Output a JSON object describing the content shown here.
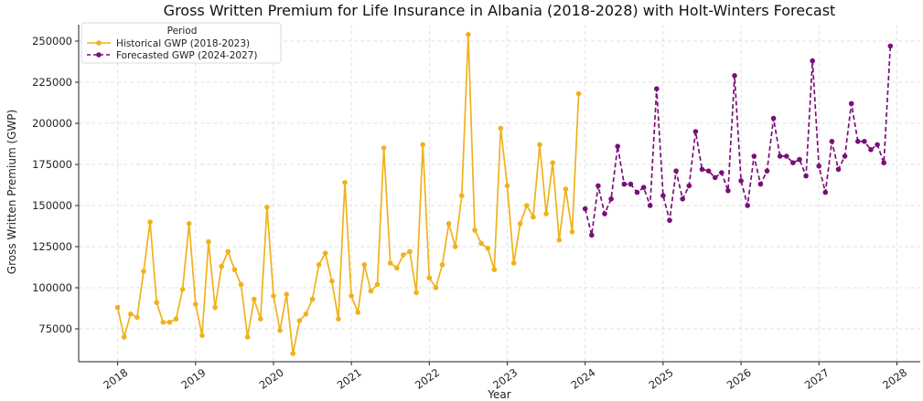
{
  "chart_data": {
    "type": "line",
    "title": "Gross Written Premium for Life Insurance in Albania (2018-2028) with Holt-Winters Forecast",
    "xlabel": "Year",
    "ylabel": "Gross Written Premium (GWP)",
    "xlim": [
      2017.5,
      2028.3
    ],
    "ylim": [
      55000,
      260000
    ],
    "x_ticks": [
      2018,
      2019,
      2020,
      2021,
      2022,
      2023,
      2024,
      2025,
      2026,
      2027,
      2028
    ],
    "x_tick_labels": [
      "2018",
      "2019",
      "2020",
      "2021",
      "2022",
      "2023",
      "2024",
      "2025",
      "2026",
      "2027",
      "2028"
    ],
    "y_ticks": [
      75000,
      100000,
      125000,
      150000,
      175000,
      200000,
      225000,
      250000
    ],
    "y_tick_labels": [
      "75000",
      "100000",
      "125000",
      "150000",
      "175000",
      "200000",
      "225000",
      "250000"
    ],
    "grid": true,
    "legend": {
      "title": "Period",
      "placement": "top-left"
    },
    "series": [
      {
        "name": "Historical GWP (2018-2023)",
        "color": "#f0b21c",
        "style": "solid",
        "start": 2018,
        "step": 0.08333,
        "values": [
          88000,
          70000,
          84000,
          82000,
          110000,
          140000,
          91000,
          79000,
          79000,
          81000,
          99000,
          139000,
          90000,
          71000,
          128000,
          88000,
          113000,
          122000,
          111000,
          102000,
          70000,
          93000,
          81000,
          149000,
          95000,
          74000,
          96000,
          60000,
          80000,
          84000,
          93000,
          114000,
          121000,
          104000,
          81000,
          164000,
          95000,
          85000,
          114000,
          98000,
          102000,
          185000,
          115000,
          112000,
          120000,
          122000,
          97000,
          187000,
          106000,
          100000,
          114000,
          139000,
          125000,
          156000,
          254000,
          135000,
          127000,
          124000,
          111000,
          197000,
          162000,
          115000,
          139000,
          150000,
          143000,
          187000,
          145000,
          176000,
          129000,
          160000,
          134000,
          218000
        ]
      },
      {
        "name": "Forecasted GWP (2024-2027)",
        "color": "#7a0f7a",
        "style": "dashed",
        "start": 2024,
        "step": 0.08333,
        "values": [
          148000,
          132000,
          162000,
          145000,
          154000,
          186000,
          163000,
          163000,
          158000,
          161000,
          150000,
          221000,
          156000,
          141000,
          171000,
          154000,
          162000,
          195000,
          172000,
          171000,
          167000,
          170000,
          159000,
          229000,
          165000,
          150000,
          180000,
          163000,
          171000,
          203000,
          180000,
          180000,
          176000,
          178000,
          168000,
          238000,
          174000,
          158000,
          189000,
          172000,
          180000,
          212000,
          189000,
          189000,
          184000,
          187000,
          176000,
          247000
        ]
      }
    ]
  }
}
